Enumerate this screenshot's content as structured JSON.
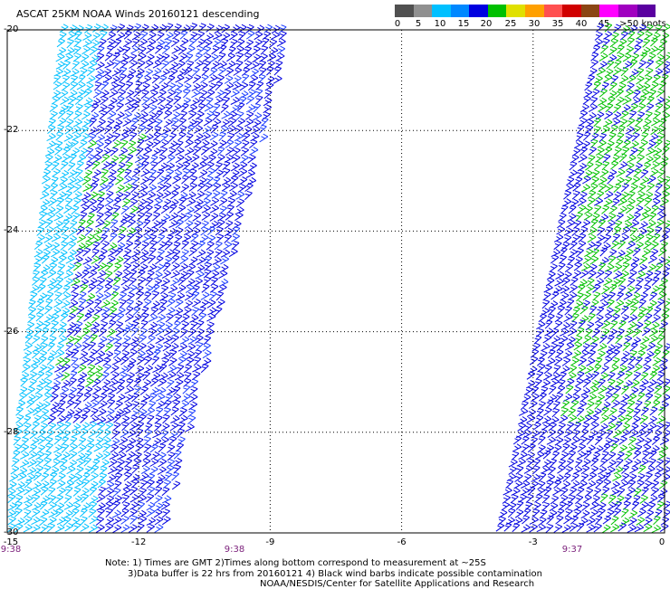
{
  "header": {
    "title": "ASCAT 25KM NOAA Winds 20160121 descending"
  },
  "legend": {
    "swatches": [
      "#505050",
      "#909090",
      "#00c0ff",
      "#0088ff",
      "#0000e0",
      "#00c000",
      "#e0e000",
      "#ffa000",
      "#ff5050",
      "#d00000",
      "#8b4513",
      "#ff00ff",
      "#a000c0",
      "#5a00a0"
    ],
    "labels": [
      "0",
      "5",
      "10",
      "15",
      "20",
      "25",
      "30",
      "35",
      "40",
      "45",
      ">50 knots"
    ]
  },
  "axes": {
    "y_labels": [
      "-20",
      "-22",
      "-24",
      "-26",
      "-28",
      "-30"
    ],
    "x_labels": [
      "-15",
      "-12",
      "-9",
      "-6",
      "-3",
      "0"
    ],
    "times": [
      "9:38",
      "9:38",
      "9:37"
    ]
  },
  "notes": {
    "line1": "Note: 1) Times are GMT 2)Times along bottom correspond to measurement at ~25S",
    "line2": "3)Data buffer is 22 hrs from 20160121 4) Black wind barbs indicate possible contamination",
    "line3": "NOAA/NESDIS/Center for Satellite Applications and Research"
  },
  "map": {
    "lon_range": [
      -15,
      0
    ],
    "lat_range": [
      -30,
      -20
    ],
    "grid": "dotted",
    "swaths": [
      {
        "side": "left",
        "time": "9:38",
        "dominant_wind_knots": "10-20"
      },
      {
        "side": "right",
        "time": "9:37",
        "dominant_wind_knots": "15-25"
      }
    ],
    "colors": {
      "light_wind": "#00c0ff",
      "mid_wind": "#0000e0",
      "strong_wind": "#00c000"
    }
  }
}
